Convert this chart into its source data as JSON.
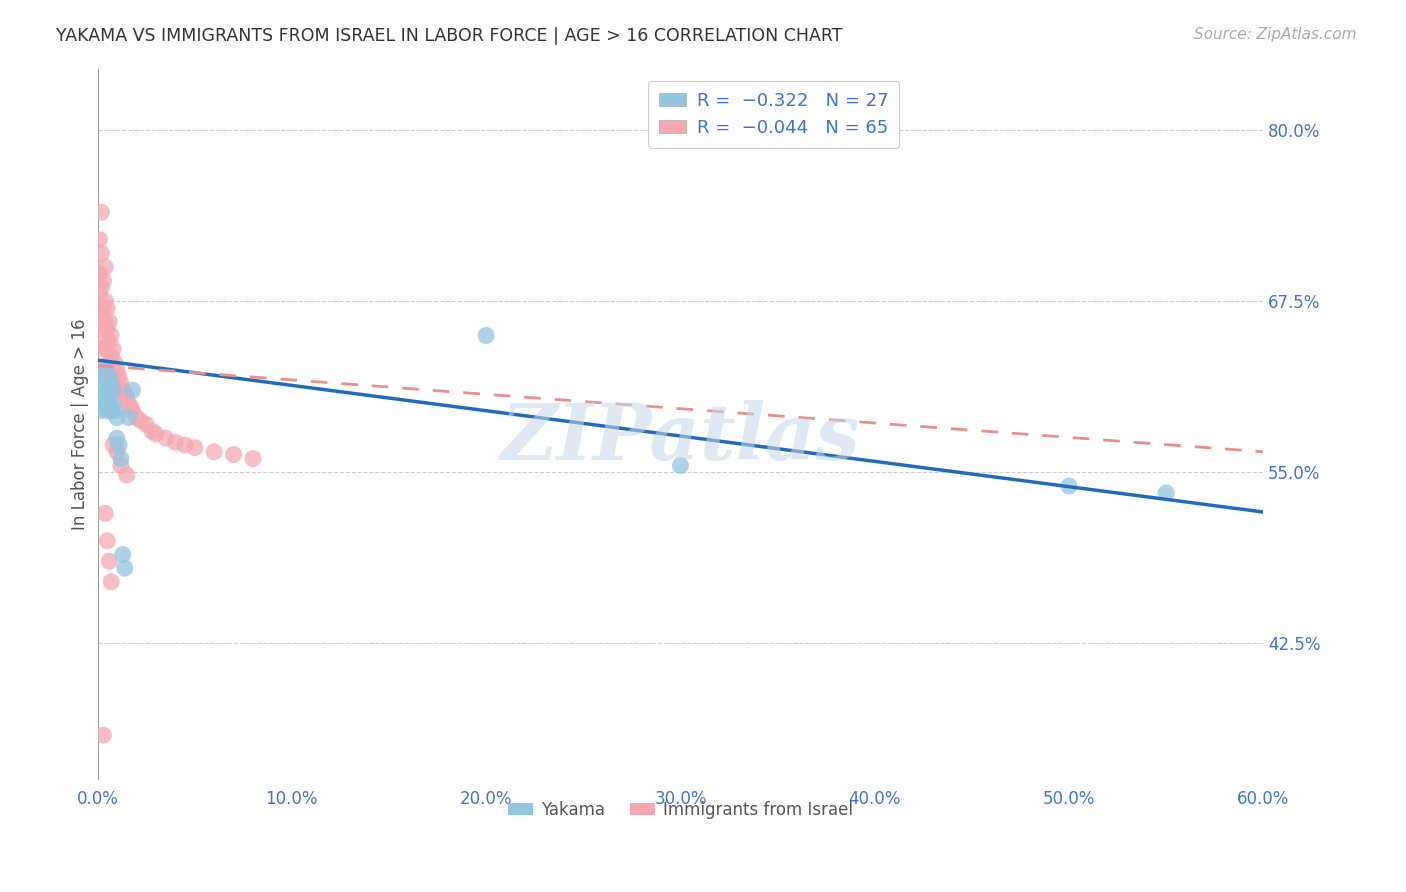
{
  "title": "YAKAMA VS IMMIGRANTS FROM ISRAEL IN LABOR FORCE | AGE > 16 CORRELATION CHART",
  "source": "Source: ZipAtlas.com",
  "ylabel_label": "In Labor Force | Age > 16",
  "x_ticklabels": [
    "0.0%",
    "10.0%",
    "20.0%",
    "30.0%",
    "40.0%",
    "50.0%",
    "60.0%"
  ],
  "x_ticks": [
    0.0,
    0.1,
    0.2,
    0.3,
    0.4,
    0.5,
    0.6
  ],
  "y_ticklabels_right": [
    "42.5%",
    "55.0%",
    "67.5%",
    "80.0%"
  ],
  "y_ticks_right": [
    0.425,
    0.55,
    0.675,
    0.8
  ],
  "xlim": [
    0.0,
    0.6
  ],
  "ylim": [
    0.325,
    0.845
  ],
  "color_blue": "#93c4e0",
  "color_pink": "#f5a8b0",
  "color_blue_line": "#1f6bbf",
  "color_pink_line": "#e89090",
  "watermark": "ZIPatlas",
  "blue_line_x": [
    0.0,
    0.6
  ],
  "blue_line_y": [
    0.632,
    0.521
  ],
  "pink_line_x": [
    0.0,
    0.6
  ],
  "pink_line_y": [
    0.628,
    0.565
  ],
  "yakama_x": [
    0.001,
    0.002,
    0.002,
    0.003,
    0.003,
    0.004,
    0.005,
    0.005,
    0.006,
    0.006,
    0.007,
    0.007,
    0.008,
    0.008,
    0.009,
    0.01,
    0.01,
    0.011,
    0.012,
    0.013,
    0.014,
    0.016,
    0.018,
    0.2,
    0.3,
    0.5,
    0.55
  ],
  "yakama_y": [
    0.62,
    0.605,
    0.595,
    0.615,
    0.6,
    0.625,
    0.61,
    0.595,
    0.62,
    0.6,
    0.615,
    0.595,
    0.61,
    0.6,
    0.595,
    0.59,
    0.575,
    0.57,
    0.56,
    0.49,
    0.48,
    0.59,
    0.61,
    0.65,
    0.555,
    0.54,
    0.535
  ],
  "israel_x": [
    0.001,
    0.001,
    0.001,
    0.002,
    0.002,
    0.002,
    0.002,
    0.003,
    0.003,
    0.003,
    0.003,
    0.003,
    0.004,
    0.004,
    0.004,
    0.004,
    0.005,
    0.005,
    0.005,
    0.005,
    0.006,
    0.006,
    0.006,
    0.006,
    0.006,
    0.007,
    0.007,
    0.007,
    0.008,
    0.008,
    0.008,
    0.009,
    0.009,
    0.01,
    0.01,
    0.011,
    0.012,
    0.013,
    0.014,
    0.015,
    0.016,
    0.017,
    0.018,
    0.02,
    0.022,
    0.025,
    0.028,
    0.03,
    0.035,
    0.04,
    0.045,
    0.05,
    0.06,
    0.07,
    0.08,
    0.008,
    0.01,
    0.012,
    0.015,
    0.003,
    0.004,
    0.005,
    0.006,
    0.007
  ],
  "israel_y": [
    0.72,
    0.695,
    0.68,
    0.74,
    0.71,
    0.685,
    0.665,
    0.69,
    0.67,
    0.655,
    0.64,
    0.625,
    0.7,
    0.675,
    0.66,
    0.645,
    0.67,
    0.655,
    0.64,
    0.625,
    0.66,
    0.645,
    0.63,
    0.615,
    0.6,
    0.65,
    0.635,
    0.62,
    0.64,
    0.625,
    0.61,
    0.63,
    0.615,
    0.625,
    0.61,
    0.62,
    0.615,
    0.61,
    0.608,
    0.605,
    0.6,
    0.598,
    0.595,
    0.59,
    0.588,
    0.585,
    0.58,
    0.578,
    0.575,
    0.572,
    0.57,
    0.568,
    0.565,
    0.563,
    0.56,
    0.57,
    0.565,
    0.555,
    0.548,
    0.358,
    0.52,
    0.5,
    0.485,
    0.47
  ]
}
